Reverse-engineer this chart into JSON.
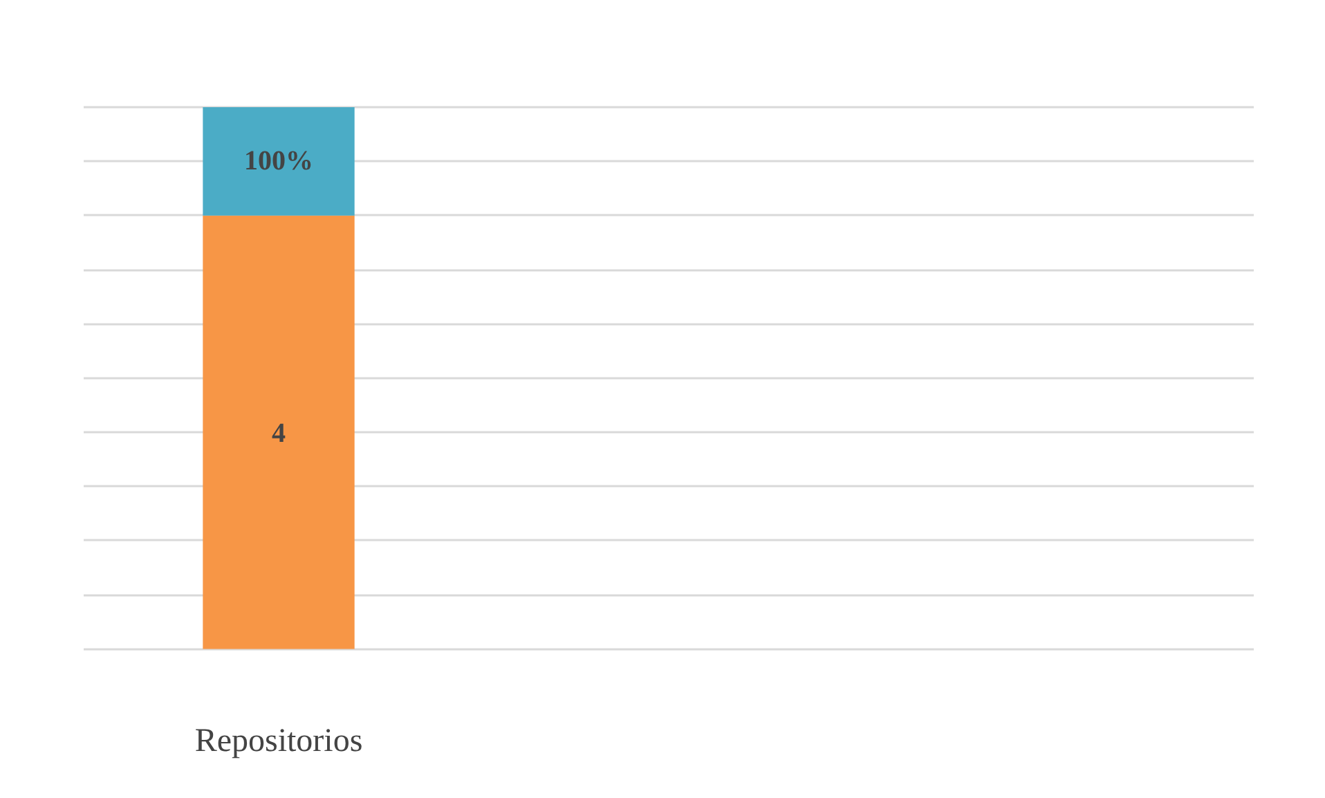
{
  "chart_data": {
    "type": "bar",
    "stacked": true,
    "categories": [
      "Repositorios"
    ],
    "series": [
      {
        "color": "#f79646",
        "values": [
          4
        ],
        "value_labels": [
          "4"
        ]
      },
      {
        "color": "#4bacc6",
        "values": [
          1
        ],
        "value_labels": [
          "100%"
        ]
      }
    ],
    "ylim": [
      0,
      5
    ],
    "yticks": [
      {
        "value": 0,
        "label": null
      },
      {
        "value": 0.5,
        "label": null
      },
      {
        "value": 1,
        "label": null
      },
      {
        "value": 1.5,
        "label": null
      },
      {
        "value": 2,
        "label": null
      },
      {
        "value": 2.5,
        "label": null
      },
      {
        "value": 3,
        "label": null
      },
      {
        "value": 3.5,
        "label": null
      },
      {
        "value": 4,
        "label": null
      },
      {
        "value": 4.5,
        "label": null
      },
      {
        "value": 5,
        "label": null
      }
    ],
    "tick_labels": false,
    "grid": "y"
  }
}
